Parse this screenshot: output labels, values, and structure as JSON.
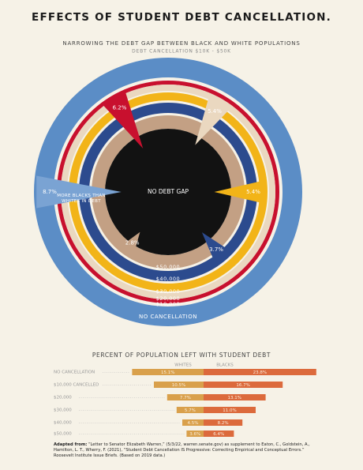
{
  "title": "EFFECTS OF STUDENT DEBT CANCELLATION.",
  "chart_data": [
    {
      "type": "radial",
      "title": "NARROWING THE DEBT GAP BETWEEN BLACK AND WHITE POPULATIONS",
      "subtitle": "DEBT CANCELLATION $10K - $50K",
      "center_label": "NO DEBT GAP",
      "annotation": "MORE BLACKS THAN WHITES IN DEBT",
      "categories": [
        "NO CANCELLATION",
        "$10,000",
        "$20,000",
        "$30,000",
        "$40,000",
        "$50,000"
      ],
      "colors": [
        "#5b8dc6",
        "#c8102e",
        "#ead8c0",
        "#f2b418",
        "#2c4b8e",
        "#c3a084"
      ],
      "values": [
        8.7,
        6.2,
        5.4,
        5.4,
        3.7,
        2.8
      ],
      "value_labels": [
        "8.7%",
        "6.2%",
        "5.4%",
        "5.4%",
        "3.7%",
        "2.8%"
      ]
    },
    {
      "type": "bar",
      "title": "PERCENT OF POPULATION LEFT WITH STUDENT DEBT",
      "categories": [
        "NO CANCELLATION",
        "$10,000 CANCELLED",
        "$20,000",
        "$30,000",
        "$40,000",
        "$50,000"
      ],
      "series": [
        {
          "name": "WHITES",
          "color": "#d9a04b",
          "values": [
            15.1,
            10.5,
            7.7,
            5.7,
            4.5,
            3.6
          ],
          "value_labels": [
            "15.1%",
            "10.5%",
            "7.7%",
            "5.7%",
            "4.5%",
            "3.6%"
          ]
        },
        {
          "name": "BLACKS",
          "color": "#dc6a3c",
          "values": [
            23.8,
            16.7,
            13.1,
            11.0,
            8.2,
            6.4
          ],
          "value_labels": [
            "23.8%",
            "16.7%",
            "13.1%",
            "11.0%",
            "8.2%",
            "6.4%"
          ]
        }
      ]
    }
  ],
  "source": {
    "lead": "Adapted from:",
    "text": "“Letter to Senator Elizabeth Warren,” (5/3/22, warren.senate.gov) as supplement to Eaton, C., Goldstein, A., Hamilton, L. T., Wherry, F. (2021), “Student Debt Cancellation IS Progressive: Correcting Empirical and Conceptual Errors.” Roosevelt Institute Issue Briefs. (Based on 2019 data.)"
  }
}
